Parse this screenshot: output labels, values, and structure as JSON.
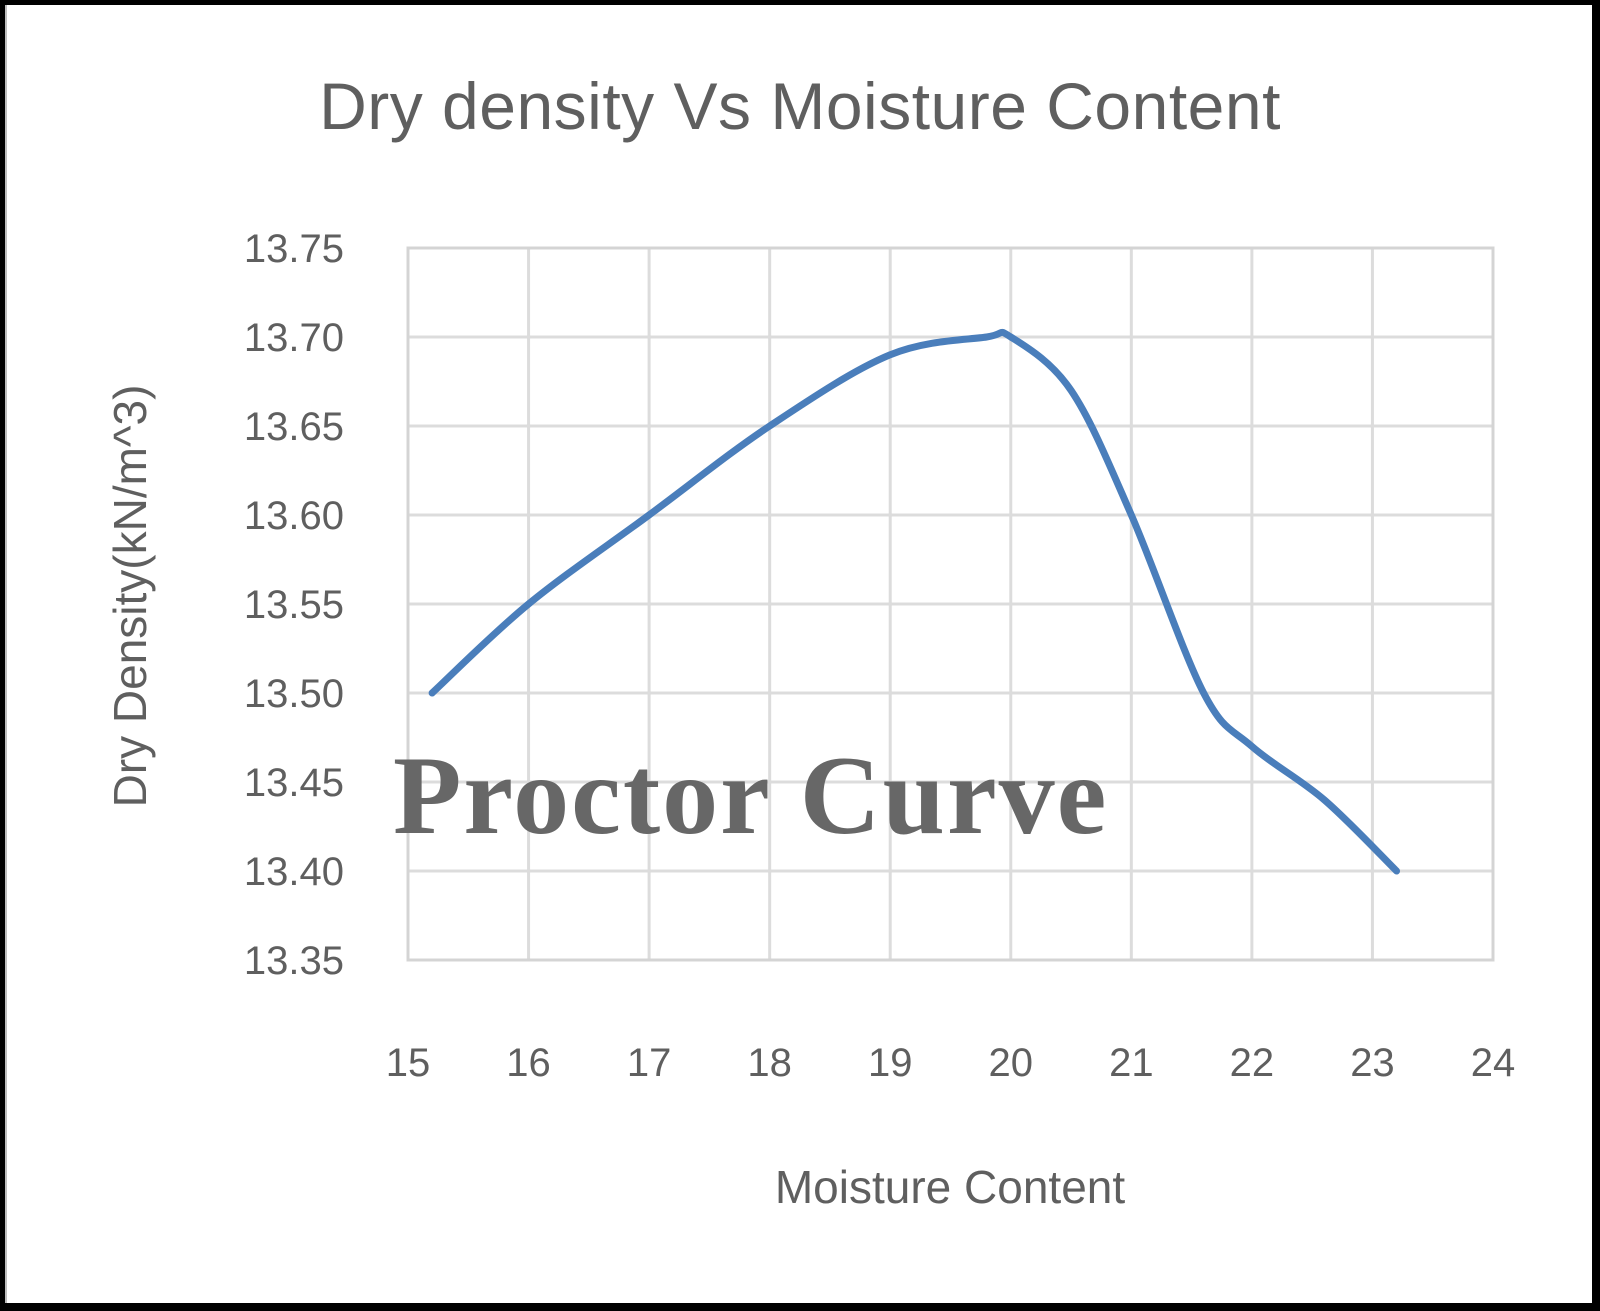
{
  "chart": {
    "title": "Dry density Vs Moisture Content",
    "watermark_text": "Proctor Curve",
    "colors": {
      "line": "#4a7ebb",
      "gridline": "#dcdcdc",
      "text": "#5f5f5f",
      "frame_border": "#000000",
      "background": "#ffffff"
    }
  },
  "chart_data": {
    "type": "line",
    "title": "Dry density Vs Moisture Content",
    "xlabel": "Moisture Content",
    "ylabel": "Dry Density(kN/m^3)",
    "xlim": [
      15,
      24
    ],
    "ylim": [
      13.35,
      13.75
    ],
    "x_ticks": [
      "15",
      "16",
      "17",
      "18",
      "19",
      "20",
      "21",
      "22",
      "23",
      "24"
    ],
    "y_ticks": [
      "13.35",
      "13.40",
      "13.45",
      "13.50",
      "13.55",
      "13.60",
      "13.65",
      "13.70",
      "13.75"
    ],
    "grid": true,
    "legend": null,
    "annotations": [
      "Proctor Curve"
    ],
    "smooth": true,
    "series": [
      {
        "name": "Dry Density",
        "x": [
          15.2,
          16.0,
          17.0,
          18.0,
          19.0,
          19.8,
          20.0,
          20.5,
          21.0,
          21.6,
          22.0,
          22.6,
          23.2
        ],
        "values": [
          13.5,
          13.55,
          13.6,
          13.65,
          13.69,
          13.7,
          13.7,
          13.67,
          13.6,
          13.5,
          13.47,
          13.44,
          13.4
        ]
      }
    ]
  }
}
